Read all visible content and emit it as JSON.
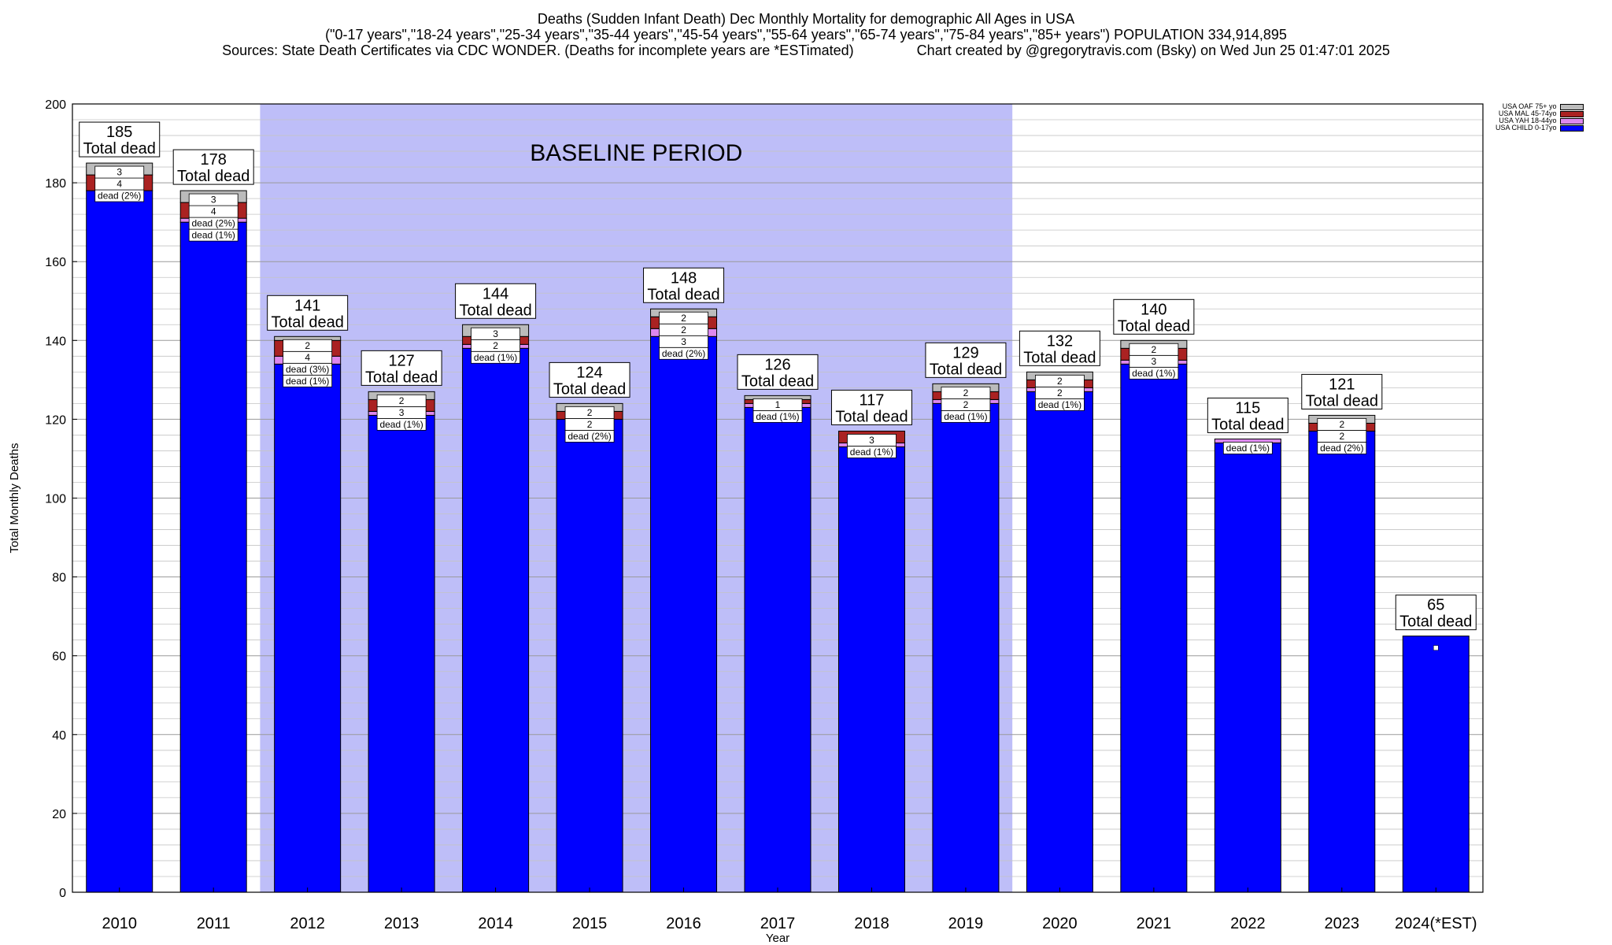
{
  "title_lines": [
    "Deaths (Sudden Infant Death) Dec Monthly Mortality for demographic All Ages in USA",
    "(\"0-17 years\",\"18-24 years\",\"25-34 years\",\"35-44 years\",\"45-54 years\",\"55-64 years\",\"65-74 years\",\"75-84 years\",\"85+ years\") POPULATION 334,914,895",
    "Sources: State Death Certificates via CDC WONDER. (Deaths for incomplete years are *ESTimated)                Chart created by @gregorytravis.com (Bsky) on Wed Jun 25 01:47:01 2025"
  ],
  "chart_data": {
    "type": "bar",
    "stacked": true,
    "xlabel": "Year",
    "ylabel": "Total Monthly Deaths",
    "ylim": [
      0,
      200
    ],
    "yticks": [
      0,
      20,
      40,
      60,
      80,
      100,
      120,
      140,
      160,
      180,
      200
    ],
    "grid": true,
    "legend_position": "top-right",
    "categories": [
      "2010",
      "2011",
      "2012",
      "2013",
      "2014",
      "2015",
      "2016",
      "2017",
      "2018",
      "2019",
      "2020",
      "2021",
      "2022",
      "2023",
      "2024(*EST)"
    ],
    "totals": [
      185,
      178,
      141,
      127,
      144,
      124,
      148,
      126,
      117,
      129,
      132,
      140,
      115,
      121,
      65
    ],
    "total_label_suffix": "Total dead",
    "baseline_period": {
      "label": "BASELINE PERIOD",
      "from": "2012",
      "to": "2019",
      "color": "#bebef8"
    },
    "series": [
      {
        "name": "USA CHILD 0-17yo",
        "color": "#0000ff",
        "values": [
          178,
          170,
          134,
          121,
          138,
          120,
          141,
          123,
          113,
          124,
          127,
          134,
          114,
          117,
          65
        ]
      },
      {
        "name": "USA YAH 18-44yo",
        "color": "#dd88ee",
        "values": [
          0,
          1,
          2,
          1,
          1,
          0,
          2,
          1,
          1,
          1,
          1,
          1,
          1,
          0,
          0
        ]
      },
      {
        "name": "USA MAL 45-74yo",
        "color": "#aa2222",
        "values": [
          4,
          4,
          4,
          3,
          2,
          2,
          3,
          1,
          3,
          2,
          2,
          3,
          0,
          2,
          0
        ]
      },
      {
        "name": "USA OAF 75+ yo",
        "color": "#bbbbbb",
        "values": [
          3,
          3,
          1,
          2,
          3,
          2,
          2,
          1,
          0,
          2,
          2,
          2,
          0,
          2,
          0
        ]
      }
    ],
    "segment_labels": [
      [
        "dead (2%)",
        "4",
        "3"
      ],
      [
        "dead (1%)",
        "dead (2%)",
        "4",
        "3"
      ],
      [
        "dead (1%)",
        "dead (3%)",
        "4",
        "2"
      ],
      [
        "dead (1%)",
        "3",
        "2"
      ],
      [
        "dead (1%)",
        "2",
        "3"
      ],
      [
        "dead (2%)",
        "2",
        "2"
      ],
      [
        "dead (2%)",
        "3",
        "2",
        "2"
      ],
      [
        "dead (1%)",
        "1"
      ],
      [
        "dead (1%)",
        "3"
      ],
      [
        "dead (1%)",
        "2",
        "2"
      ],
      [
        "dead (1%)",
        "2",
        "2"
      ],
      [
        "dead (1%)",
        "3",
        "2"
      ],
      [
        "dead (1%)"
      ],
      [
        "dead (2%)",
        "2",
        "2"
      ],
      []
    ]
  }
}
